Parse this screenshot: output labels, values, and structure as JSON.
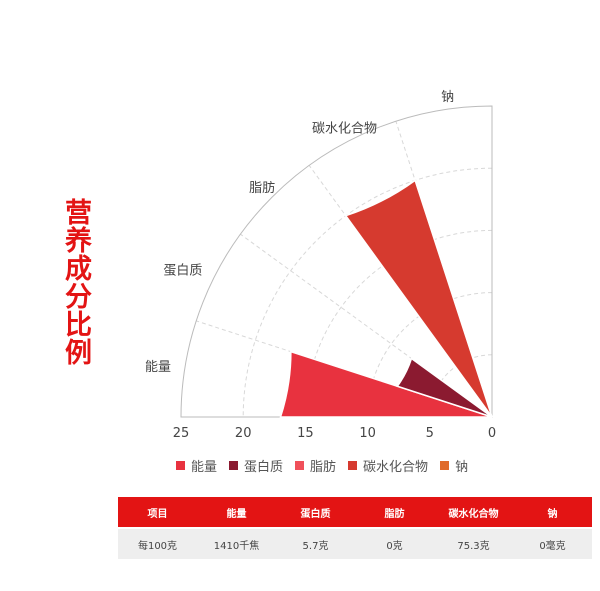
{
  "page": {
    "side_title": "营养成分比例"
  },
  "chart_data": {
    "type": "polar-bar",
    "categories": [
      "能量",
      "蛋白质",
      "脂肪",
      "碳水化合物",
      "钠"
    ],
    "values": [
      17,
      8,
      0,
      20,
      0
    ],
    "colors": [
      "#e8323f",
      "#8b1a30",
      "#f0505a",
      "#d63a2f",
      "#e06a2a"
    ],
    "radial_axis": {
      "range": [
        0,
        25
      ],
      "ticks": [
        25,
        20,
        15,
        10,
        5,
        0
      ]
    },
    "angular_range_deg": [
      90,
      180
    ],
    "grid": true,
    "legend_position": "bottom"
  },
  "table": {
    "headers": [
      "项目",
      "能量",
      "蛋白质",
      "脂肪",
      "碳水化合物",
      "钠"
    ],
    "rows": [
      [
        "每100克",
        "1410千焦",
        "5.7克",
        "0克",
        "75.3克",
        "0毫克"
      ]
    ]
  }
}
